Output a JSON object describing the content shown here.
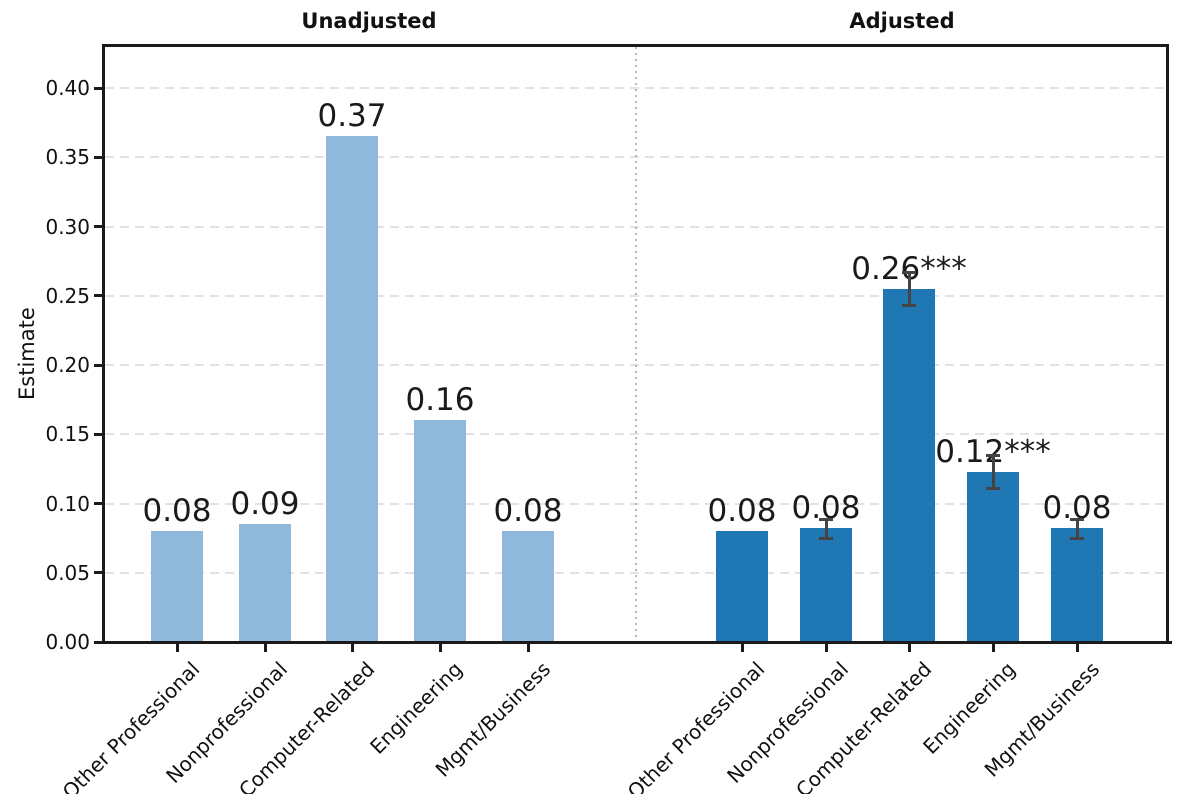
{
  "chart_data": {
    "type": "bar",
    "ylabel": "Estimate",
    "ylim": [
      0,
      0.432
    ],
    "grid": "horizontal dashed, light gray",
    "legend_position": "none",
    "yticks": [
      "0.00",
      "0.05",
      "0.10",
      "0.15",
      "0.20",
      "0.25",
      "0.30",
      "0.35",
      "0.40"
    ],
    "categories": [
      "Other Professional",
      "Nonprofessional",
      "Computer-Related",
      "Engineering",
      "Mgmt/Business"
    ],
    "panels": [
      {
        "title": "Unadjusted",
        "bar_color": "#8FB8DA",
        "values": [
          0.08,
          0.085,
          0.365,
          0.16,
          0.08
        ],
        "labels": [
          "0.08",
          "0.09",
          "0.37",
          "0.16",
          "0.08"
        ],
        "errors": [
          null,
          null,
          null,
          null,
          null
        ]
      },
      {
        "title": "Adjusted",
        "bar_color": "#1F77B4",
        "values": [
          0.08,
          0.082,
          0.255,
          0.123,
          0.082
        ],
        "labels": [
          "0.08",
          "0.08",
          "0.26***",
          "0.12***",
          "0.08"
        ],
        "errors": [
          null,
          0.007,
          0.012,
          0.012,
          0.007
        ]
      }
    ],
    "colors": {
      "bar_unadjusted": "#8FB8DA",
      "bar_adjusted": "#1F77B4",
      "error_bar": "#444444",
      "gridline": "#e2e2e2",
      "panel_divider": "#b8b8b8",
      "axis": "#1a1a1a",
      "text": "#111111"
    }
  }
}
